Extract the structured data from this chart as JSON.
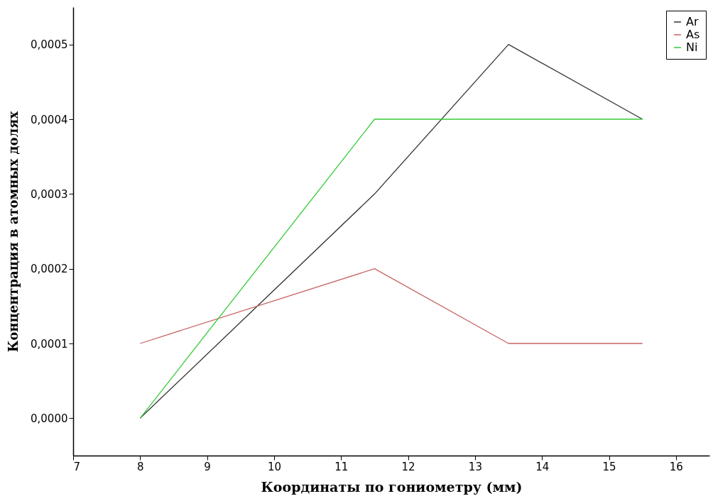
{
  "chart_data": {
    "type": "line",
    "xlabel": "Координаты по гониометру (мм)",
    "ylabel": "Концентрация в атомных долях",
    "x": [
      8,
      11.5,
      13.5,
      15.5
    ],
    "series": [
      {
        "name": "Ar",
        "color": "#333333",
        "values": [
          0,
          0.0003,
          0.0005,
          0.0004
        ]
      },
      {
        "name": "As",
        "color": "#c86464",
        "values": [
          0.0001,
          0.0002,
          0.0001,
          0.0001
        ]
      },
      {
        "name": "Ni",
        "color": "#33cc33",
        "values": [
          0,
          0.0004,
          0.0004,
          0.0004
        ]
      }
    ],
    "xlim": [
      7,
      16.5
    ],
    "xticks": [
      7,
      8,
      9,
      10,
      11,
      12,
      13,
      14,
      15,
      16
    ],
    "ylim": [
      -5e-05,
      0.00055
    ],
    "yticks": [
      {
        "value": 0,
        "label": "0,0000"
      },
      {
        "value": 0.0001,
        "label": "0,0001"
      },
      {
        "value": 0.0002,
        "label": "0,0002"
      },
      {
        "value": 0.0003,
        "label": "0,0003"
      },
      {
        "value": 0.0004,
        "label": "0,0004"
      },
      {
        "value": 0.0005,
        "label": "0,0005"
      }
    ],
    "grid": false,
    "legend": "top right",
    "marker": "none",
    "line_style": "solid"
  }
}
